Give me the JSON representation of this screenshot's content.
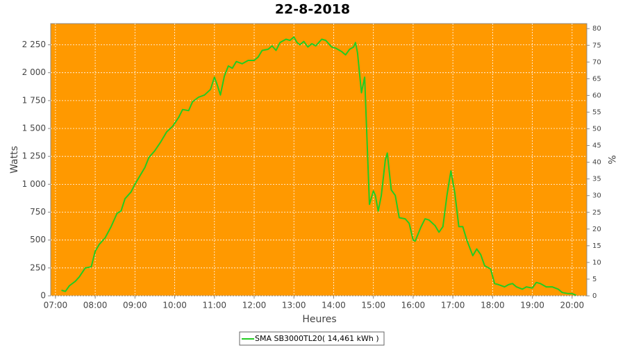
{
  "chart_data": {
    "type": "line",
    "title": "22-8-2018",
    "x_label": "Heures",
    "y_label": "Watts",
    "y2_label": "%",
    "xlim": [
      6.88,
      20.37
    ],
    "xticks": [
      {
        "value": 7,
        "label": "07:00"
      },
      {
        "value": 8,
        "label": "08:00"
      },
      {
        "value": 9,
        "label": "09:00"
      },
      {
        "value": 10,
        "label": "10:00"
      },
      {
        "value": 11,
        "label": "11:00"
      },
      {
        "value": 12,
        "label": "12:00"
      },
      {
        "value": 13,
        "label": "13:00"
      },
      {
        "value": 14,
        "label": "14:00"
      },
      {
        "value": 15,
        "label": "15:00"
      },
      {
        "value": 16,
        "label": "16:00"
      },
      {
        "value": 17,
        "label": "17:00"
      },
      {
        "value": 18,
        "label": "18:00"
      },
      {
        "value": 19,
        "label": "19:00"
      },
      {
        "value": 20,
        "label": "20:00"
      }
    ],
    "ylim": [
      0,
      2440
    ],
    "yticks": [
      0,
      250,
      500,
      750,
      {
        "value": 1000,
        "label": "1 000"
      },
      {
        "value": 1250,
        "label": "1 250"
      },
      {
        "value": 1500,
        "label": "1 500"
      },
      {
        "value": 1750,
        "label": "1 750"
      },
      {
        "value": 2000,
        "label": "2 000"
      },
      {
        "value": 2250,
        "label": "2 250"
      }
    ],
    "y2lim": [
      0,
      81.5
    ],
    "y2ticks": [
      0,
      5,
      10,
      15,
      20,
      25,
      30,
      35,
      40,
      45,
      50,
      55,
      60,
      65,
      70,
      75,
      80
    ],
    "grid": true,
    "background": "#ff9900",
    "x": [
      7.15,
      7.25,
      7.35,
      7.5,
      7.6,
      7.75,
      7.9,
      8.0,
      8.1,
      8.25,
      8.4,
      8.55,
      8.65,
      8.75,
      8.9,
      9.0,
      9.1,
      9.25,
      9.35,
      9.5,
      9.65,
      9.8,
      9.95,
      10.1,
      10.2,
      10.35,
      10.45,
      10.6,
      10.75,
      10.9,
      11.0,
      11.08,
      11.15,
      11.25,
      11.35,
      11.45,
      11.55,
      11.7,
      11.85,
      12.0,
      12.1,
      12.2,
      12.35,
      12.45,
      12.55,
      12.65,
      12.8,
      12.9,
      13.0,
      13.08,
      13.15,
      13.25,
      13.35,
      13.45,
      13.55,
      13.7,
      13.8,
      13.95,
      14.05,
      14.2,
      14.3,
      14.4,
      14.5,
      14.55,
      14.6,
      14.7,
      14.78,
      14.85,
      14.9,
      15.0,
      15.05,
      15.12,
      15.2,
      15.3,
      15.35,
      15.45,
      15.55,
      15.65,
      15.8,
      15.9,
      16.0,
      16.05,
      16.2,
      16.3,
      16.4,
      16.55,
      16.65,
      16.75,
      16.85,
      16.95,
      17.05,
      17.15,
      17.25,
      17.35,
      17.5,
      17.6,
      17.7,
      17.8,
      17.95,
      18.05,
      18.15,
      18.3,
      18.4,
      18.5,
      18.6,
      18.75,
      18.85,
      19.0,
      19.1,
      19.2,
      19.35,
      19.5,
      19.65,
      19.75,
      19.9,
      20.0,
      20.1
    ],
    "series": [
      {
        "name": "SMA SB3000TL20( 14,461 kWh )",
        "color": "#22cc22",
        "values": [
          50,
          40,
          90,
          130,
          170,
          250,
          260,
          400,
          460,
          520,
          620,
          740,
          760,
          870,
          930,
          1000,
          1060,
          1150,
          1240,
          1300,
          1380,
          1470,
          1520,
          1600,
          1670,
          1660,
          1740,
          1780,
          1800,
          1850,
          1960,
          1880,
          1800,
          1970,
          2060,
          2040,
          2100,
          2080,
          2110,
          2110,
          2140,
          2200,
          2210,
          2240,
          2200,
          2270,
          2300,
          2290,
          2320,
          2270,
          2250,
          2280,
          2230,
          2260,
          2240,
          2300,
          2290,
          2230,
          2220,
          2190,
          2160,
          2210,
          2230,
          2270,
          2180,
          1820,
          1960,
          1300,
          820,
          940,
          900,
          760,
          900,
          1220,
          1280,
          950,
          900,
          700,
          690,
          650,
          500,
          490,
          620,
          690,
          680,
          630,
          570,
          620,
          900,
          1120,
          920,
          620,
          620,
          500,
          360,
          420,
          370,
          270,
          240,
          110,
          100,
          80,
          100,
          110,
          80,
          60,
          80,
          70,
          120,
          110,
          80,
          80,
          60,
          30,
          20,
          20,
          5
        ]
      }
    ]
  }
}
